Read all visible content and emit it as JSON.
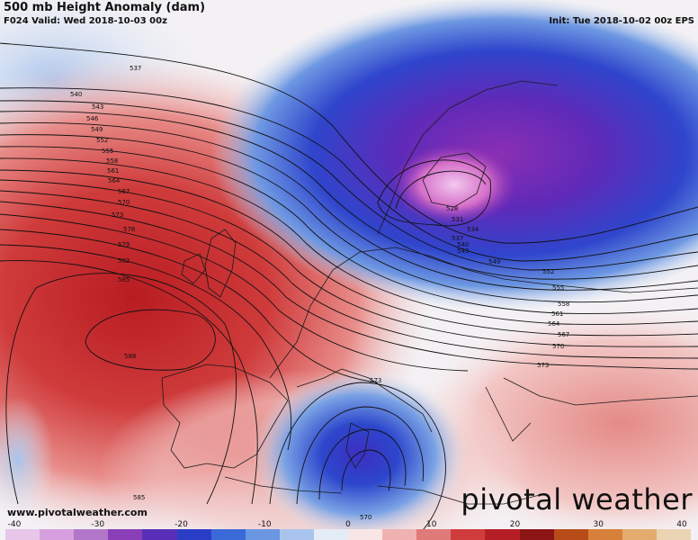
{
  "header": {
    "title": "500 mb Height Anomaly (dam)",
    "valid": "F024 Valid: Wed 2018-10-03 00z",
    "init": "Init: Tue 2018-10-02 00z EPS"
  },
  "footer": {
    "website": "www.pivotalweather.com",
    "brand": "pivotal weather"
  },
  "colorbar": {
    "ticks": [
      "-40",
      "-30",
      "-20",
      "-10",
      "0",
      "10",
      "20",
      "30",
      "40"
    ],
    "colors": [
      "#e8c6ea",
      "#d6a0de",
      "#b277c9",
      "#8a3fb8",
      "#5a2fb8",
      "#2a3dc7",
      "#3a6ad8",
      "#6a96e2",
      "#a9c4ec",
      "#e4ecf6",
      "#f8e6e6",
      "#efb2b0",
      "#e07a78",
      "#cf3c3c",
      "#b51e24",
      "#8c1414",
      "#b84c18",
      "#d6803a",
      "#e3ac6c",
      "#ead4b4"
    ]
  },
  "contour_labels": [
    "537",
    "540",
    "543",
    "546",
    "549",
    "552",
    "555",
    "558",
    "561",
    "564",
    "567",
    "570",
    "573",
    "576",
    "579",
    "582",
    "585",
    "588",
    "528",
    "531",
    "534",
    "537",
    "540",
    "543",
    "549",
    "552",
    "555",
    "558",
    "561",
    "564",
    "567",
    "570",
    "573",
    "573",
    "585",
    "570"
  ]
}
